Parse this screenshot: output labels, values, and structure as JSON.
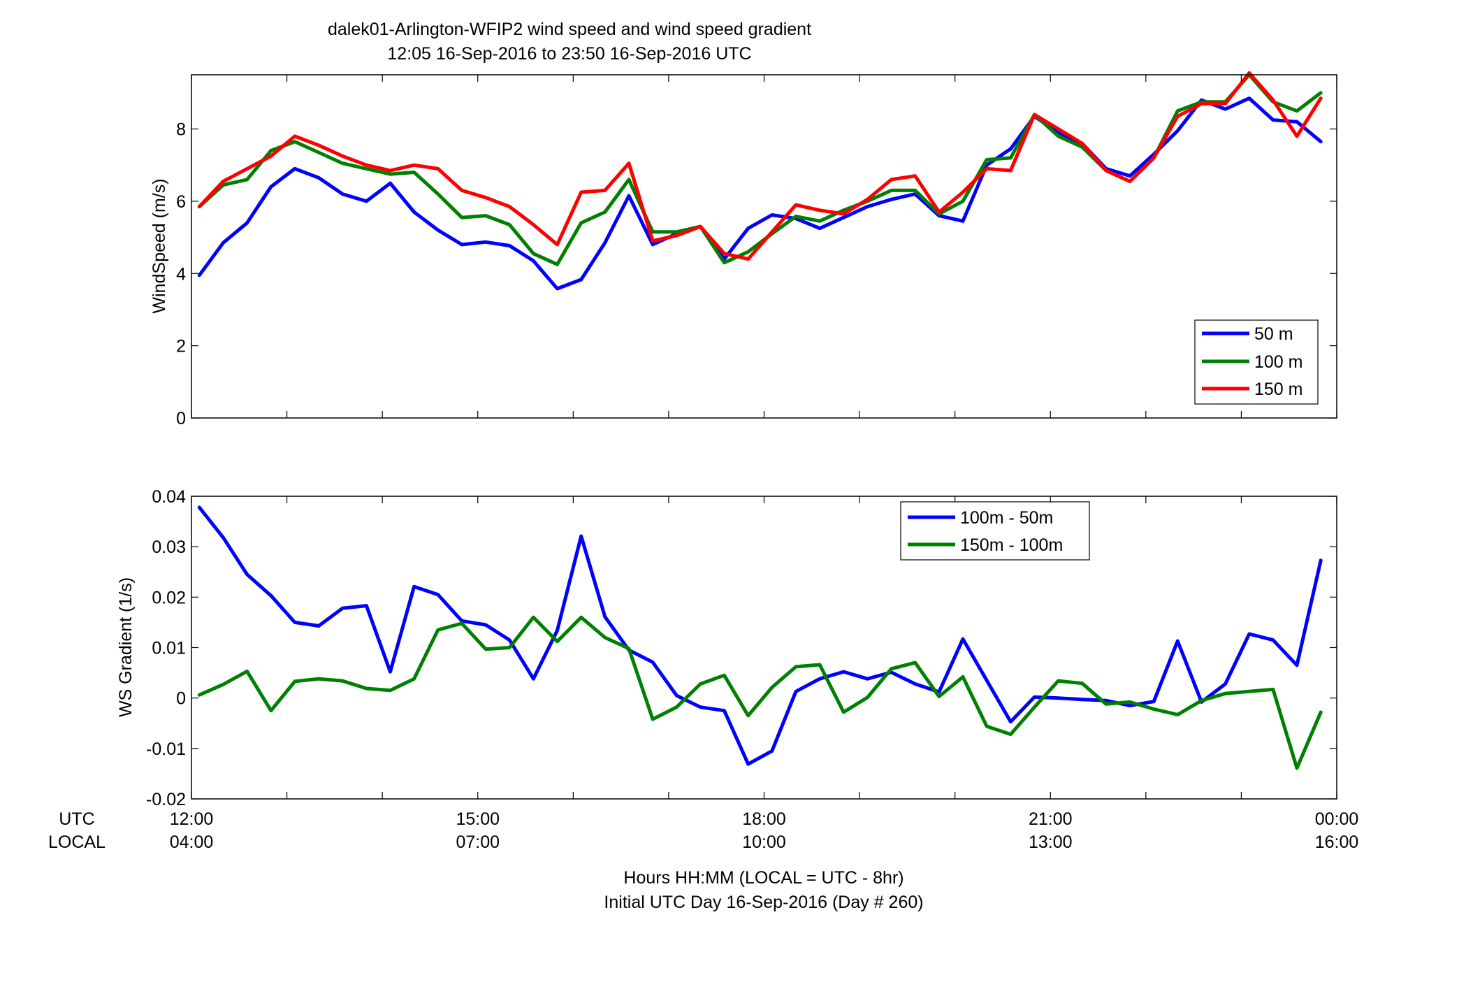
{
  "title": {
    "line1": "dalek01-Arlington-WFIP2  wind speed and wind speed gradient",
    "line2": "12:05 16-Sep-2016 to 23:50 16-Sep-2016  UTC"
  },
  "xaxis": {
    "row_label_utc": "UTC",
    "row_label_local": "LOCAL",
    "utc_ticks": [
      "12:00",
      "15:00",
      "18:00",
      "21:00",
      "00:00"
    ],
    "local_ticks": [
      "04:00",
      "07:00",
      "10:00",
      "13:00",
      "16:00"
    ],
    "label_line1": "Hours HH:MM  (LOCAL = UTC - 8hr)",
    "label_line2": "Initial UTC Day 16-Sep-2016 (Day # 260)"
  },
  "colors": {
    "blue": "#0000ff",
    "green": "#008000",
    "red": "#ff0000"
  },
  "chart_data": [
    {
      "type": "line",
      "ylabel": "WindSpeed (m/s)",
      "ylim": [
        0,
        9.5
      ],
      "yticks": [
        0,
        2,
        4,
        6,
        8
      ],
      "ytick_labels": [
        "0",
        "2",
        "4",
        "6",
        "8"
      ],
      "xlim_hours": [
        12,
        24
      ],
      "x_hours": [
        12.083,
        12.333,
        12.583,
        12.833,
        13.083,
        13.333,
        13.583,
        13.833,
        14.083,
        14.333,
        14.583,
        14.833,
        15.083,
        15.333,
        15.583,
        15.833,
        16.083,
        16.333,
        16.583,
        16.833,
        17.083,
        17.333,
        17.583,
        17.833,
        18.083,
        18.333,
        18.583,
        18.833,
        19.083,
        19.333,
        19.583,
        19.833,
        20.083,
        20.333,
        20.583,
        20.833,
        21.083,
        21.333,
        21.583,
        21.833,
        22.083,
        22.333,
        22.583,
        22.833,
        23.083,
        23.333,
        23.583,
        23.833
      ],
      "legend_position": "bottom-right",
      "series": [
        {
          "name": "50 m",
          "color": "#0000ff",
          "values": [
            3.95,
            4.85,
            5.4,
            6.4,
            6.9,
            6.65,
            6.2,
            6.0,
            6.5,
            5.7,
            5.2,
            4.8,
            4.87,
            4.77,
            4.35,
            3.58,
            3.83,
            4.85,
            6.15,
            4.8,
            5.1,
            5.3,
            4.4,
            5.25,
            5.62,
            5.52,
            5.25,
            5.55,
            5.85,
            6.05,
            6.2,
            5.6,
            5.45,
            7.0,
            7.45,
            8.35,
            7.9,
            7.6,
            6.9,
            6.7,
            7.3,
            7.95,
            8.8,
            8.55,
            8.85,
            8.25,
            8.2,
            7.65
          ]
        },
        {
          "name": "100 m",
          "color": "#008000",
          "values": [
            5.85,
            6.45,
            6.6,
            7.4,
            7.65,
            7.35,
            7.05,
            6.9,
            6.75,
            6.8,
            6.2,
            5.55,
            5.6,
            5.35,
            4.55,
            4.25,
            5.4,
            5.7,
            6.6,
            5.15,
            5.15,
            5.3,
            4.3,
            4.6,
            5.1,
            5.58,
            5.45,
            5.75,
            6.0,
            6.3,
            6.3,
            5.65,
            6.0,
            7.15,
            7.2,
            8.4,
            7.8,
            7.5,
            6.85,
            6.55,
            7.2,
            8.5,
            8.75,
            8.75,
            9.5,
            8.75,
            8.5,
            9.0
          ]
        },
        {
          "name": "150 m",
          "color": "#ff0000",
          "values": [
            5.85,
            6.55,
            6.9,
            7.25,
            7.8,
            7.55,
            7.25,
            7.0,
            6.85,
            7.0,
            6.9,
            6.3,
            6.1,
            5.85,
            5.35,
            4.8,
            6.25,
            6.3,
            7.05,
            4.9,
            5.05,
            5.3,
            4.55,
            4.4,
            5.15,
            5.9,
            5.75,
            5.65,
            6.05,
            6.6,
            6.7,
            5.7,
            6.25,
            6.9,
            6.85,
            8.4,
            8.0,
            7.6,
            6.85,
            6.55,
            7.2,
            8.35,
            8.7,
            8.7,
            9.55,
            8.8,
            7.8,
            8.85
          ]
        }
      ]
    },
    {
      "type": "line",
      "ylabel": "WS Gradient (1/s)",
      "ylim": [
        -0.02,
        0.04
      ],
      "yticks": [
        -0.02,
        -0.01,
        0,
        0.01,
        0.02,
        0.03,
        0.04
      ],
      "ytick_labels": [
        "-0.02",
        "-0.01",
        "0",
        "0.01",
        "0.02",
        "0.03",
        "0.04"
      ],
      "xlim_hours": [
        12,
        24
      ],
      "x_hours": [
        12.083,
        12.333,
        12.583,
        12.833,
        13.083,
        13.333,
        13.583,
        13.833,
        14.083,
        14.333,
        14.583,
        14.833,
        15.083,
        15.333,
        15.583,
        15.833,
        16.083,
        16.333,
        16.583,
        16.833,
        17.083,
        17.333,
        17.583,
        17.833,
        18.083,
        18.333,
        18.583,
        18.833,
        19.083,
        19.333,
        19.583,
        19.833,
        20.083,
        20.333,
        20.583,
        20.833,
        21.083,
        21.333,
        21.583,
        21.833,
        22.083,
        22.333,
        22.583,
        22.833,
        23.083,
        23.333,
        23.583,
        23.833
      ],
      "legend_position": "top-right",
      "series": [
        {
          "name": "100m - 50m",
          "color": "#0000ff",
          "values": [
            0.0378,
            0.0318,
            0.0245,
            0.0203,
            0.015,
            0.0143,
            0.0178,
            0.0183,
            0.0052,
            0.0221,
            0.0205,
            0.0153,
            0.0145,
            0.0115,
            0.0038,
            0.0134,
            0.0321,
            0.0161,
            0.0095,
            0.0071,
            0.0005,
            -0.0018,
            -0.0025,
            -0.0131,
            -0.0105,
            0.0013,
            0.0038,
            0.0052,
            0.0038,
            0.0051,
            0.0028,
            0.0012,
            0.0117,
            0.0035,
            -0.0047,
            0.0002,
            0.0,
            -0.0003,
            -0.0005,
            -0.0015,
            -0.0007,
            0.0113,
            -0.0008,
            0.0028,
            0.0127,
            0.0115,
            0.0065,
            0.0273
          ]
        },
        {
          "name": "150m - 100m",
          "color": "#008000",
          "values": [
            0.0006,
            0.0027,
            0.0053,
            -0.0025,
            0.0033,
            0.0038,
            0.0034,
            0.0019,
            0.0015,
            0.0038,
            0.0135,
            0.0148,
            0.0097,
            0.01,
            0.016,
            0.0112,
            0.016,
            0.012,
            0.0098,
            -0.0042,
            -0.0018,
            0.0028,
            0.0045,
            -0.0035,
            0.0021,
            0.0062,
            0.0066,
            -0.0028,
            0.0001,
            0.0058,
            0.007,
            0.0003,
            0.0042,
            -0.0056,
            -0.0072,
            -0.0018,
            0.0034,
            0.0029,
            -0.0012,
            -0.0008,
            -0.0022,
            -0.0033,
            -0.0005,
            0.0009,
            0.0013,
            0.0017,
            -0.0139,
            -0.0028
          ]
        }
      ]
    }
  ]
}
